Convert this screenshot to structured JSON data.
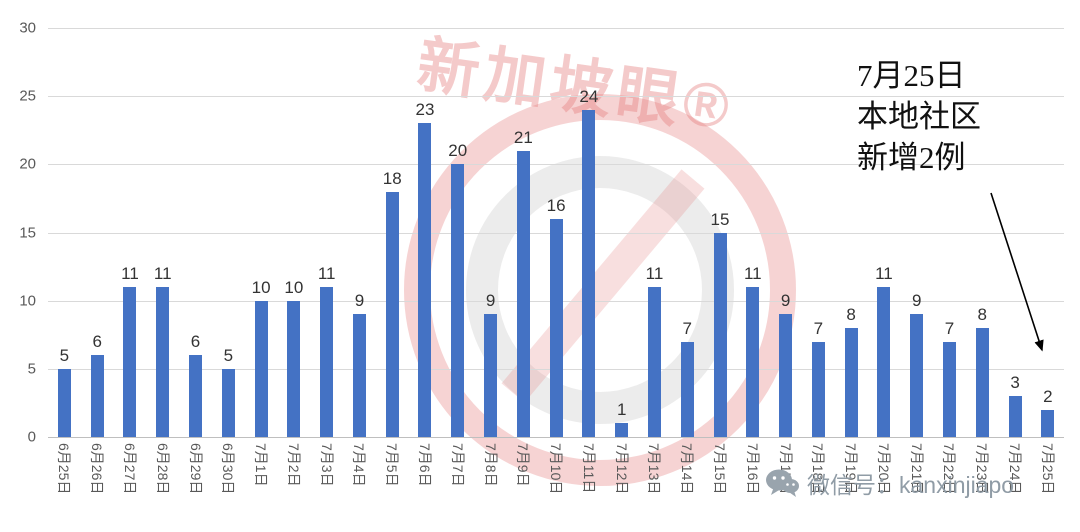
{
  "chart_data": {
    "type": "bar",
    "title": "",
    "xlabel": "",
    "ylabel": "",
    "categories": [
      "6月25日",
      "6月26日",
      "6月27日",
      "6月28日",
      "6月29日",
      "6月30日",
      "7月1日",
      "7月2日",
      "7月3日",
      "7月4日",
      "7月5日",
      "7月6日",
      "7月7日",
      "7月8日",
      "7月9日",
      "7月10日",
      "7月11日",
      "7月12日",
      "7月13日",
      "7月14日",
      "7月15日",
      "7月16日",
      "7月17日",
      "7月18日",
      "7月19日",
      "7月20日",
      "7月21日",
      "7月22日",
      "7月23日",
      "7月24日",
      "7月25日"
    ],
    "values": [
      5,
      6,
      11,
      11,
      6,
      5,
      10,
      10,
      11,
      9,
      18,
      23,
      20,
      9,
      21,
      16,
      24,
      1,
      11,
      7,
      15,
      11,
      9,
      7,
      8,
      11,
      9,
      7,
      8,
      3,
      2
    ],
    "ylim": [
      0,
      30
    ],
    "yticks": [
      0,
      5,
      10,
      15,
      20,
      25,
      30
    ],
    "grid": true,
    "legend": "none",
    "bar_color": "#4472c4"
  },
  "annotation": {
    "lines": [
      "7月25日",
      "本地社区",
      "新增2例"
    ]
  },
  "watermark": {
    "brand_text": "新加坡眼®",
    "wechat_label": "微信号：kanxinjiapo"
  },
  "colors": {
    "bar": "#4472c4",
    "gridline": "#d9d9d9",
    "axis_line": "#bfbfbf",
    "axis_text": "#595959",
    "value_label": "#333333",
    "watermark_pink": "#e48080",
    "wechat_gray": "#909ca6"
  }
}
